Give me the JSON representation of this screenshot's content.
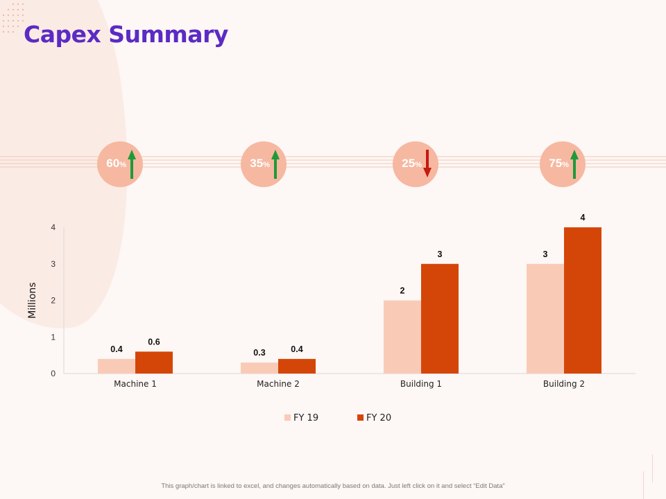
{
  "slide": {
    "title": "Capex Summary",
    "footnote": "This graph/chart is linked to excel, and changes automatically based on data. Just left click on it and select “Edit Data”"
  },
  "kpis": [
    {
      "value": "60",
      "unit": "%",
      "direction": "up",
      "arrow_icon": "arrow-up-icon"
    },
    {
      "value": "35",
      "unit": "%",
      "direction": "up",
      "arrow_icon": "arrow-up-icon"
    },
    {
      "value": "25",
      "unit": "%",
      "direction": "down",
      "arrow_icon": "arrow-down-icon"
    },
    {
      "value": "75",
      "unit": "%",
      "direction": "up",
      "arrow_icon": "arrow-up-icon"
    }
  ],
  "colors": {
    "title": "#5b2bc4",
    "kpi_circle": "#f6b8a0",
    "arrow_up": "#1e9a3a",
    "arrow_down": "#c41a10",
    "fy19": "#f9cbb7",
    "fy20": "#d44608"
  },
  "chart_data": {
    "type": "bar",
    "categories": [
      "Machine 1",
      "Machine 2",
      "Building 1",
      "Building 2"
    ],
    "series": [
      {
        "name": "FY 19",
        "values": [
          0.4,
          0.3,
          2,
          3
        ],
        "labels": [
          "0.4",
          "0.3",
          "2",
          "3"
        ]
      },
      {
        "name": "FY 20",
        "values": [
          0.6,
          0.4,
          3,
          4
        ],
        "labels": [
          "0.6",
          "0.4",
          "3",
          "4"
        ]
      }
    ],
    "ylabel": "Millions",
    "ylim": [
      0,
      4
    ],
    "yticks": [
      "0",
      "1",
      "2",
      "3",
      "4"
    ],
    "grid": false,
    "legend": "bottom"
  }
}
